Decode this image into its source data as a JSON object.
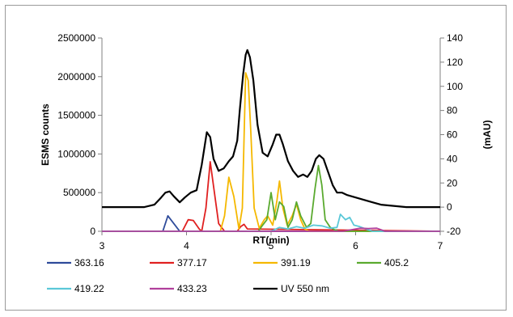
{
  "chart_data": {
    "type": "line",
    "title": "",
    "xlabel": "RT(min)",
    "ylabel": "ESMS counts",
    "y2label": "(mAU)",
    "xlim": [
      3,
      7
    ],
    "ylim": [
      0,
      2500000
    ],
    "y2lim": [
      -20,
      140
    ],
    "xticks": [
      3,
      4,
      5,
      6,
      7
    ],
    "yticks": [
      0,
      500000,
      1000000,
      1500000,
      2000000,
      2500000
    ],
    "y2ticks": [
      -20,
      0,
      20,
      40,
      60,
      80,
      100,
      120,
      140
    ],
    "grid": false,
    "legend_position": "bottom",
    "series": [
      {
        "name": "363.16",
        "color": "#2E4B9A",
        "axis": "left",
        "x": [
          3.0,
          3.72,
          3.78,
          3.85,
          3.92,
          7.0
        ],
        "y": [
          0,
          0,
          200000,
          100000,
          0,
          0
        ]
      },
      {
        "name": "377.17",
        "color": "#E02020",
        "axis": "left",
        "x": [
          3.0,
          3.95,
          4.02,
          4.08,
          4.15,
          4.18,
          4.23,
          4.28,
          4.33,
          4.38,
          4.45,
          4.6,
          4.64,
          4.68,
          4.72,
          7.0
        ],
        "y": [
          0,
          0,
          150000,
          140000,
          30000,
          0,
          300000,
          900000,
          500000,
          100000,
          0,
          0,
          60000,
          90000,
          30000,
          0
        ]
      },
      {
        "name": "391.19",
        "color": "#F5B800",
        "axis": "left",
        "x": [
          3.0,
          4.4,
          4.45,
          4.5,
          4.56,
          4.62,
          4.66,
          4.7,
          4.73,
          4.76,
          4.8,
          4.86,
          4.92,
          4.96,
          5.02,
          5.07,
          5.1,
          5.14,
          5.19,
          5.25,
          5.3,
          5.35,
          5.4,
          5.45,
          7.0
        ],
        "y": [
          0,
          0,
          200000,
          700000,
          450000,
          30000,
          300000,
          2050000,
          1950000,
          1300000,
          300000,
          40000,
          150000,
          200000,
          80000,
          400000,
          650000,
          300000,
          80000,
          200000,
          350000,
          150000,
          30000,
          0,
          0
        ]
      },
      {
        "name": "405.2",
        "color": "#5AAA2F",
        "axis": "left",
        "x": [
          3.0,
          4.85,
          4.9,
          4.95,
          5.0,
          5.05,
          5.1,
          5.15,
          5.2,
          5.25,
          5.3,
          5.35,
          5.42,
          5.47,
          5.52,
          5.56,
          5.6,
          5.64,
          5.7,
          5.75,
          5.8,
          7.0
        ],
        "y": [
          0,
          0,
          80000,
          150000,
          500000,
          150000,
          380000,
          320000,
          50000,
          150000,
          380000,
          200000,
          50000,
          100000,
          550000,
          850000,
          600000,
          150000,
          50000,
          20000,
          0,
          0
        ]
      },
      {
        "name": "419.22",
        "color": "#5BC8D8",
        "axis": "left",
        "x": [
          3.0,
          5.0,
          5.1,
          5.2,
          5.3,
          5.4,
          5.5,
          5.6,
          5.7,
          5.78,
          5.82,
          5.88,
          5.93,
          5.98,
          6.05,
          6.12,
          6.2,
          7.0
        ],
        "y": [
          0,
          0,
          50000,
          30000,
          60000,
          40000,
          80000,
          70000,
          40000,
          50000,
          220000,
          150000,
          180000,
          80000,
          60000,
          30000,
          0,
          0
        ]
      },
      {
        "name": "433.23",
        "color": "#B0409C",
        "axis": "left",
        "x": [
          3.0,
          5.85,
          5.95,
          6.05,
          6.15,
          6.25,
          6.35,
          7.0
        ],
        "y": [
          0,
          0,
          20000,
          40000,
          35000,
          40000,
          0,
          0
        ]
      },
      {
        "name": "UV 550 nm",
        "color": "#000000",
        "axis": "right",
        "x": [
          3.0,
          3.5,
          3.62,
          3.7,
          3.75,
          3.8,
          3.85,
          3.92,
          3.98,
          4.05,
          4.12,
          4.18,
          4.24,
          4.28,
          4.32,
          4.38,
          4.44,
          4.5,
          4.55,
          4.6,
          4.63,
          4.67,
          4.7,
          4.72,
          4.75,
          4.79,
          4.84,
          4.9,
          4.96,
          5.02,
          5.06,
          5.1,
          5.14,
          5.2,
          5.26,
          5.32,
          5.38,
          5.43,
          5.48,
          5.53,
          5.57,
          5.62,
          5.67,
          5.73,
          5.78,
          5.84,
          5.9,
          6.0,
          6.1,
          6.2,
          6.3,
          6.45,
          6.6,
          7.0
        ],
        "y": [
          0,
          0,
          2,
          8,
          12,
          13,
          9,
          4,
          8,
          12,
          14,
          35,
          62,
          58,
          40,
          30,
          32,
          38,
          42,
          55,
          80,
          110,
          126,
          130,
          124,
          105,
          68,
          45,
          42,
          52,
          60,
          60,
          52,
          38,
          30,
          25,
          27,
          25,
          30,
          40,
          43,
          40,
          30,
          18,
          12,
          12,
          10,
          8,
          6,
          4,
          2,
          1,
          0,
          0
        ]
      }
    ]
  }
}
